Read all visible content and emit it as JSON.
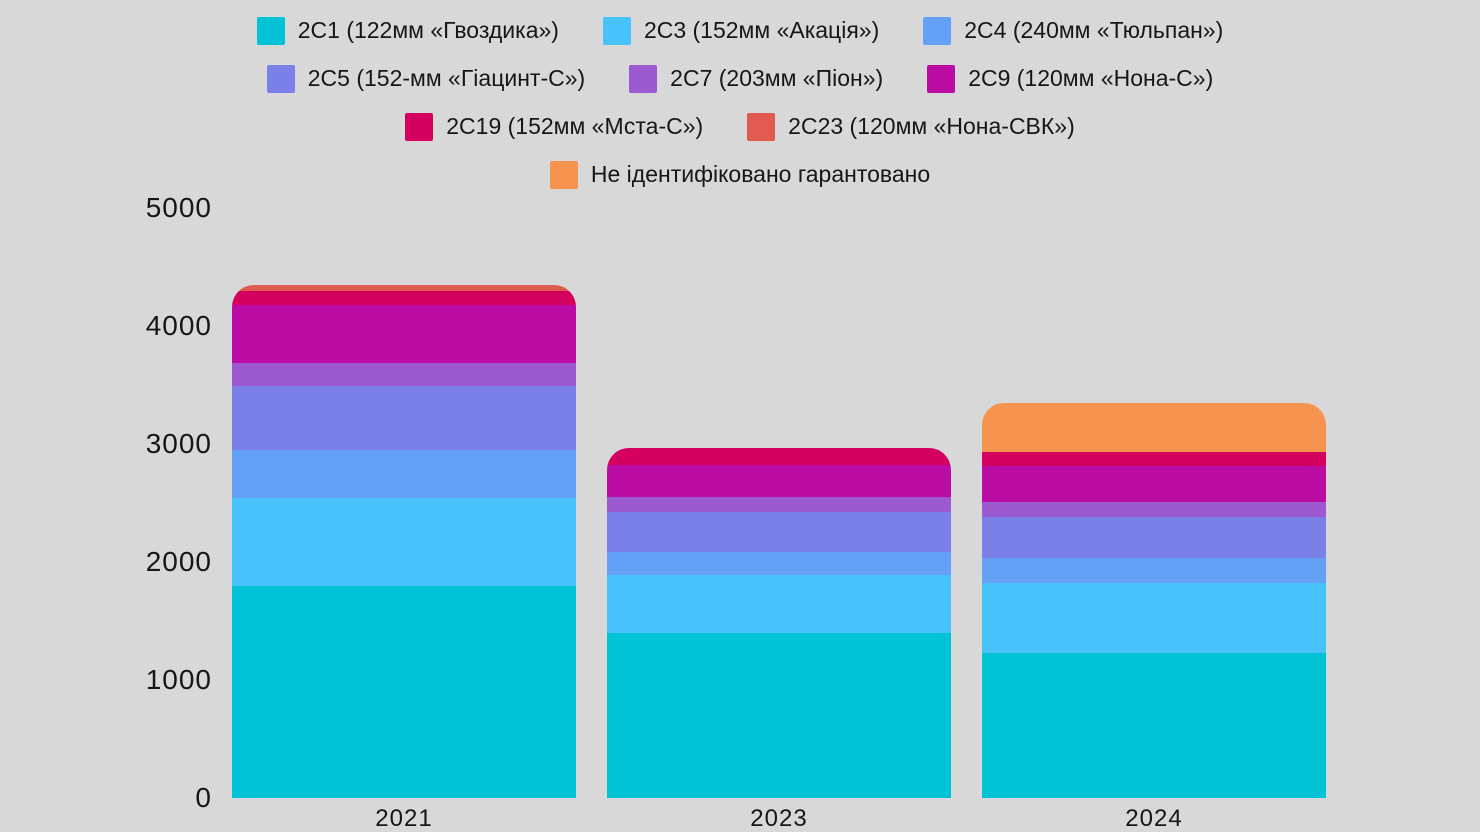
{
  "background_color": "#d8d8d8",
  "text_color": "#161616",
  "legend": {
    "rows": [
      [
        0,
        1,
        2
      ],
      [
        3,
        4,
        5
      ],
      [
        6,
        7
      ],
      [
        8
      ]
    ]
  },
  "chart_data": {
    "type": "bar",
    "stacked": true,
    "title": "",
    "xlabel": "",
    "ylabel": "",
    "categories": [
      "2021",
      "2023",
      "2024"
    ],
    "series": [
      {
        "name": "2С1 (122мм «Гвоздика»)",
        "color": "#00c4d6",
        "values": [
          1800,
          1400,
          1230
        ]
      },
      {
        "name": "2С3 (152мм «Акація»)",
        "color": "#47c2fa",
        "values": [
          745,
          490,
          590
        ]
      },
      {
        "name": "2С4 (240мм «Тюльпан»)",
        "color": "#64a0f5",
        "values": [
          400,
          195,
          210
        ]
      },
      {
        "name": "2С5 (152-мм «Гіацинт-С»)",
        "color": "#7b80e8",
        "values": [
          550,
          340,
          350
        ]
      },
      {
        "name": "2С7 (203мм «Піон»)",
        "color": "#9d5ad0",
        "values": [
          195,
          125,
          130
        ]
      },
      {
        "name": "2С9 (120мм «Нона-С»)",
        "color": "#bb0da4",
        "values": [
          485,
          270,
          305
        ]
      },
      {
        "name": "2С19 (152мм «Мста-С»)",
        "color": "#d4005f",
        "values": [
          125,
          145,
          120
        ]
      },
      {
        "name": "2С23 (120мм «Нона-СВК»)",
        "color": "#e15a4f",
        "values": [
          45,
          0,
          0
        ]
      },
      {
        "name": "Не ідентифіковано гарантовано",
        "color": "#f6934f",
        "values": [
          0,
          0,
          410
        ]
      }
    ],
    "totals": [
      4345,
      2965,
      3345
    ],
    "ylim": [
      0,
      5000
    ],
    "yticks": [
      0,
      1000,
      2000,
      3000,
      4000,
      5000
    ],
    "grid": false,
    "legend_position": "top"
  }
}
